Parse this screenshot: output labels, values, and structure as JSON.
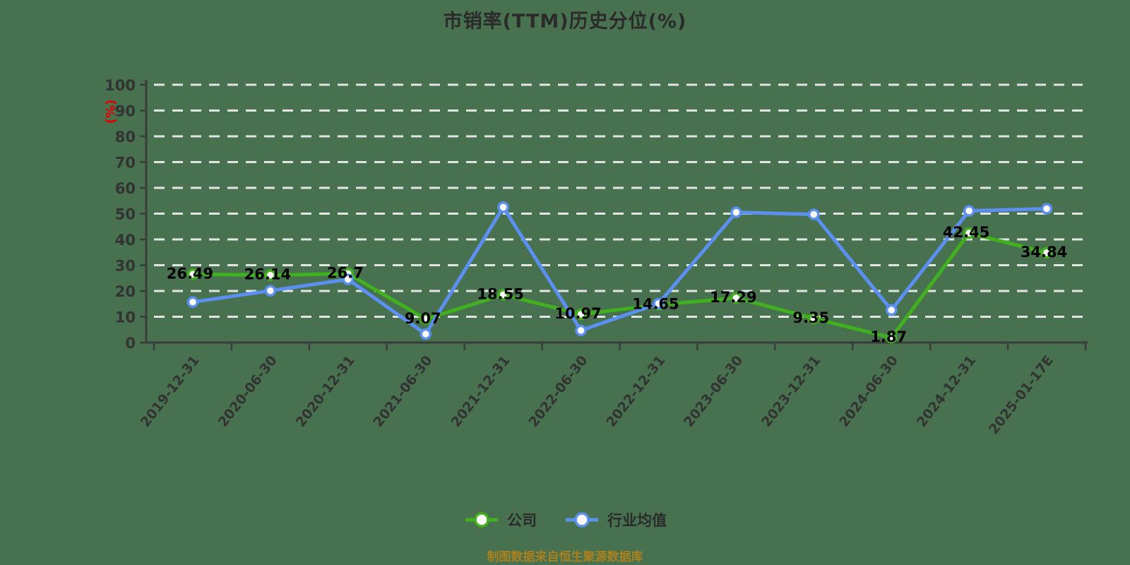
{
  "footer": {
    "text": "制图数据来自恒生聚源数据库",
    "color": "#aa801e"
  },
  "colors": {
    "background": "#47714F",
    "title": "#2b2b2b",
    "axis": "#3b3b3b",
    "gridline": "#ececec",
    "tick_label": "#333333",
    "value_label": "#000000",
    "legend_text": "#2b2b2b",
    "y_unit_label": "#e60000",
    "marker_fill": "#ffffff"
  },
  "chart_data": {
    "type": "line",
    "title": "市销率(TTM)历史分位(%)",
    "xlabel": "",
    "ylabel": "(%)",
    "ylim": [
      0,
      100
    ],
    "y_interval": 10,
    "grid": true,
    "grid_style": "dashed",
    "legend_position": "bottom",
    "categories": [
      "2019-12-31",
      "2020-06-30",
      "2020-12-31",
      "2021-06-30",
      "2021-12-31",
      "2022-06-30",
      "2022-12-31",
      "2023-06-30",
      "2023-12-31",
      "2024-06-30",
      "2024-12-31",
      "2025-01-17E"
    ],
    "series": [
      {
        "name": "公司",
        "key": "company",
        "color": "#41b01e",
        "marker": "circle-white-fill",
        "show_value_labels": true,
        "values": [
          26.49,
          26.14,
          26.7,
          9.07,
          18.55,
          10.97,
          14.65,
          17.29,
          9.35,
          1.87,
          42.45,
          34.84
        ]
      },
      {
        "name": "行业均值",
        "key": "industry_avg",
        "color": "#5b8ff0",
        "marker": "circle-white-fill",
        "show_value_labels": false,
        "values": [
          15.7,
          20.1,
          24.5,
          3.3,
          52.5,
          4.7,
          15.1,
          50.5,
          49.7,
          12.6,
          51.1,
          51.9
        ]
      }
    ]
  }
}
